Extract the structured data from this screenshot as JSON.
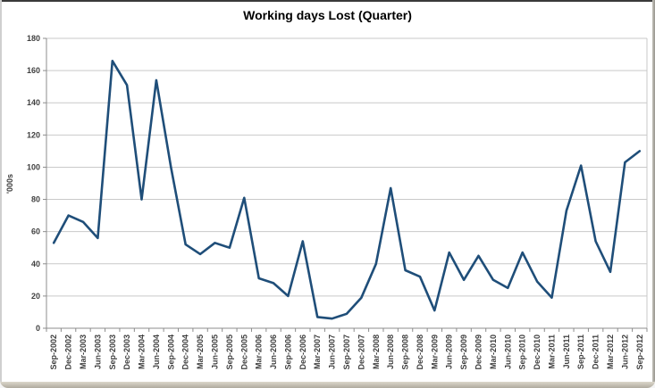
{
  "chart_data": {
    "type": "line",
    "title": "Working days Lost (Quarter)",
    "xlabel": "",
    "ylabel": "'000s",
    "ylim": [
      0,
      180
    ],
    "ytick_step": 20,
    "y_tick_labels": [
      "0",
      "20",
      "40",
      "60",
      "80",
      "100",
      "120",
      "140",
      "160",
      "180"
    ],
    "grid": true,
    "legend_position": "none",
    "series_name": "Working days lost",
    "series_color": "#1f4e79",
    "gridline_color": "#c9c9c9",
    "axis_color": "#8c8c8c",
    "label_color": "#3f3f3f",
    "categories": [
      "Sep-2002",
      "Dec-2002",
      "Mar-2003",
      "Jun-2003",
      "Sep-2003",
      "Dec-2003",
      "Mar-2004",
      "Jun-2004",
      "Sep-2004",
      "Dec-2004",
      "Mar-2005",
      "Jun-2005",
      "Sep-2005",
      "Dec-2005",
      "Mar-2006",
      "Jun-2006",
      "Sep-2006",
      "Dec-2006",
      "Mar-2007",
      "Jun-2007",
      "Sep-2007",
      "Dec-2007",
      "Mar-2008",
      "Jun-2008",
      "Sep-2008",
      "Dec-2008",
      "Mar-2009",
      "Jun-2009",
      "Sep-2009",
      "Dec-2009",
      "Mar-2010",
      "Jun-2010",
      "Sep-2010",
      "Dec-2010",
      "Mar-2011",
      "Jun-2011",
      "Sep-2011",
      "Dec-2011",
      "Mar-2012",
      "Jun-2012",
      "Sep-2012"
    ],
    "values": [
      53,
      70,
      66,
      56,
      166,
      151,
      80,
      154,
      100,
      52,
      46,
      53,
      50,
      81,
      31,
      28,
      20,
      54,
      7,
      6,
      9,
      19,
      40,
      87,
      36,
      32,
      11,
      47,
      30,
      45,
      30,
      25,
      47,
      29,
      19,
      73,
      101,
      54,
      35,
      103,
      110
    ]
  }
}
